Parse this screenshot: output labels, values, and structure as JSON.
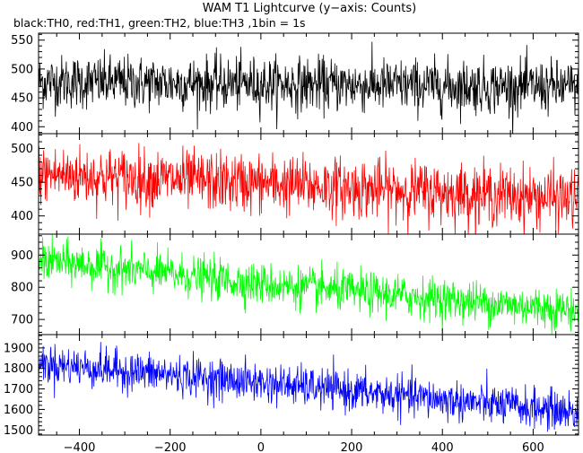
{
  "chart_data": {
    "type": "line",
    "title": "WAM T1 Lightcurve (y−axis: Counts)",
    "subtitle": "black:TH0, red:TH1, green:TH2, blue:TH3 ,1bin = 1s",
    "xlim": [
      -490,
      700
    ],
    "x_ticks": [
      -400,
      -200,
      0,
      200,
      400,
      600
    ],
    "x_tick_labels": [
      "−400",
      "−200",
      "0",
      "200",
      "400",
      "600"
    ],
    "grid": false,
    "legend": "none (series colours described in subtitle)",
    "panels": [
      {
        "name": "TH0",
        "color": "#000000",
        "ylim": [
          388,
          562
        ],
        "y_ticks": [
          400,
          450,
          500,
          550
        ],
        "trend": {
          "x": [
            -490,
            0,
            700
          ],
          "y": [
            478,
            474,
            468
          ]
        },
        "noise_sd": 23
      },
      {
        "name": "TH1",
        "color": "#ff0000",
        "ylim": [
          373,
          522
        ],
        "y_ticks": [
          400,
          450,
          500
        ],
        "trend": {
          "x": [
            -490,
            0,
            700
          ],
          "y": [
            462,
            448,
            425
          ]
        },
        "noise_sd": 22
      },
      {
        "name": "TH2",
        "color": "#00ff00",
        "ylim": [
          653,
          965
        ],
        "y_ticks": [
          700,
          800,
          900
        ],
        "trend": {
          "x": [
            -490,
            0,
            700
          ],
          "y": [
            885,
            810,
            728
          ]
        },
        "noise_sd": 32
      },
      {
        "name": "TH3",
        "color": "#0000ff",
        "ylim": [
          1475,
          1965
        ],
        "y_ticks": [
          1500,
          1600,
          1700,
          1800,
          1900
        ],
        "trend": {
          "x": [
            -490,
            0,
            700
          ],
          "y": [
            1825,
            1730,
            1585
          ]
        },
        "noise_sd": 48
      }
    ]
  }
}
